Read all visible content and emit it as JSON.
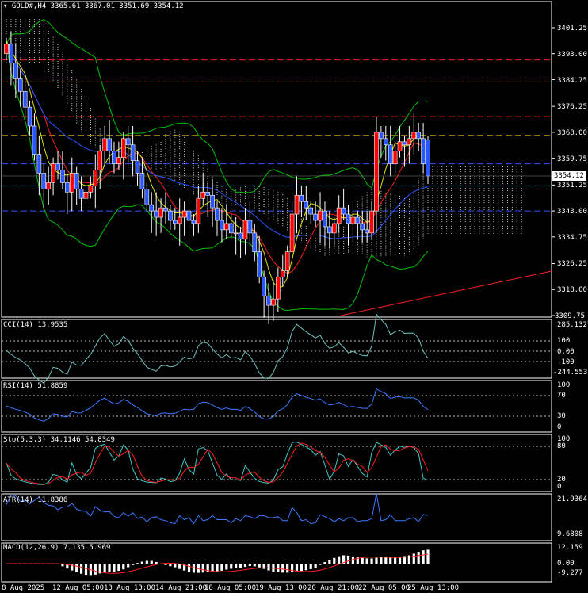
{
  "symbol_header": {
    "arrow": "▾",
    "text": "GOLD#,H4  3365.61 3367.01 3351.69 3354.12"
  },
  "colors": {
    "bg": "#000000",
    "bull": "#ff0000",
    "bear": "#2a55ff",
    "grid": "#ffffff",
    "kumo": "#ffffff",
    "ma_green": "#00c000",
    "cci": "#6fc0c0",
    "rsi": "#3a7aff",
    "stoch_main": "#40c8c8",
    "stoch_signal": "#ff2020",
    "atr": "#3a7aff",
    "macd_hist": "#ffffff",
    "macd_signal": "#ff2020"
  },
  "price_axis": {
    "ticks": [
      "3401.25",
      "3393.00",
      "3384.75",
      "3376.25",
      "3368.00",
      "3359.75",
      "3351.25",
      "3343.00",
      "3334.75",
      "3326.25",
      "3318.00",
      "3309.75"
    ],
    "current": "3354.12"
  },
  "chart_data": {
    "type": "candlestick",
    "timeframe": "H4",
    "x_labels": [
      "8 Aug 2025",
      "12 Aug 05:00",
      "13 Aug 13:00",
      "14 Aug 21:00",
      "18 Aug 05:00",
      "19 Aug 13:00",
      "20 Aug 21:00",
      "22 Aug 05:00",
      "25 Aug 13:00"
    ],
    "y_range": [
      3309.75,
      3401.25
    ],
    "last_bar": {
      "open": 3365.61,
      "high": 3367.01,
      "low": 3351.69,
      "close": 3354.12
    },
    "horizontal_levels": [
      3391,
      3384,
      3373,
      3367,
      3358,
      3351,
      3343
    ],
    "closes": [
      3396,
      3390,
      3385,
      3381,
      3376,
      3370,
      3361,
      3355,
      3350,
      3352,
      3358,
      3356,
      3352,
      3349,
      3355,
      3350,
      3347,
      3349,
      3351,
      3356,
      3362,
      3366,
      3362,
      3358,
      3360,
      3366,
      3364,
      3359,
      3355,
      3350,
      3345,
      3343,
      3341,
      3344,
      3343,
      3340,
      3339,
      3341,
      3343,
      3340,
      3339,
      3347,
      3349,
      3348,
      3344,
      3340,
      3337,
      3339,
      3336,
      3336,
      3334,
      3340,
      3336,
      3330,
      3322,
      3316,
      3313,
      3315,
      3322,
      3324,
      3330,
      3342,
      3348,
      3346,
      3344,
      3342,
      3340,
      3343,
      3338,
      3336,
      3339,
      3344,
      3342,
      3339,
      3341,
      3339,
      3337,
      3336,
      3343,
      3368,
      3366,
      3364,
      3358,
      3362,
      3365,
      3364,
      3366,
      3368,
      3366,
      3358,
      3354
    ]
  },
  "indicators": {
    "cci": {
      "title": "CCI(14) 13.9535",
      "ticks": [
        "285.1327",
        "100",
        "0.00",
        "-100",
        "-244.5532"
      ]
    },
    "rsi": {
      "title": "RSI(14) 51.8859",
      "ticks": [
        "100",
        "70",
        "30",
        "0"
      ]
    },
    "stoch": {
      "title": "Sto(5,3,3) 34.1146 54.8349",
      "ticks": [
        "100",
        "80",
        "20",
        "0"
      ]
    },
    "atr": {
      "title": "ATR(14) 11.8386",
      "ticks": [
        "21.9364",
        "9.6808"
      ]
    },
    "macd": {
      "title": "MACD(12,26,9) 7.135 5.969",
      "ticks": [
        "12.159",
        "0.00",
        "-9.277"
      ]
    }
  }
}
